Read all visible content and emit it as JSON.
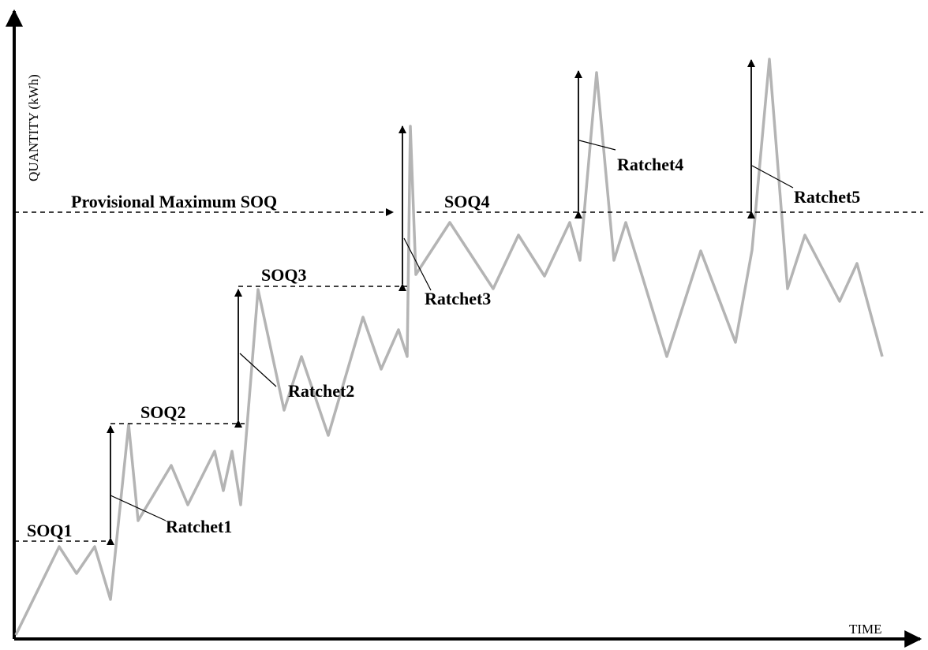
{
  "axes": {
    "y_label": "QUANTITY (kWh)",
    "x_label": "TIME"
  },
  "labels": {
    "provisional_max": "Provisional Maximum SOQ",
    "soq1": "SOQ1",
    "soq2": "SOQ2",
    "soq3": "SOQ3",
    "soq4": "SOQ4",
    "ratchet1": "Ratchet1",
    "ratchet2": "Ratchet2",
    "ratchet3": "Ratchet3",
    "ratchet4": "Ratchet4",
    "ratchet5": "Ratchet5"
  },
  "colors": {
    "series": "#b4b4b4",
    "ink": "#000000"
  }
}
